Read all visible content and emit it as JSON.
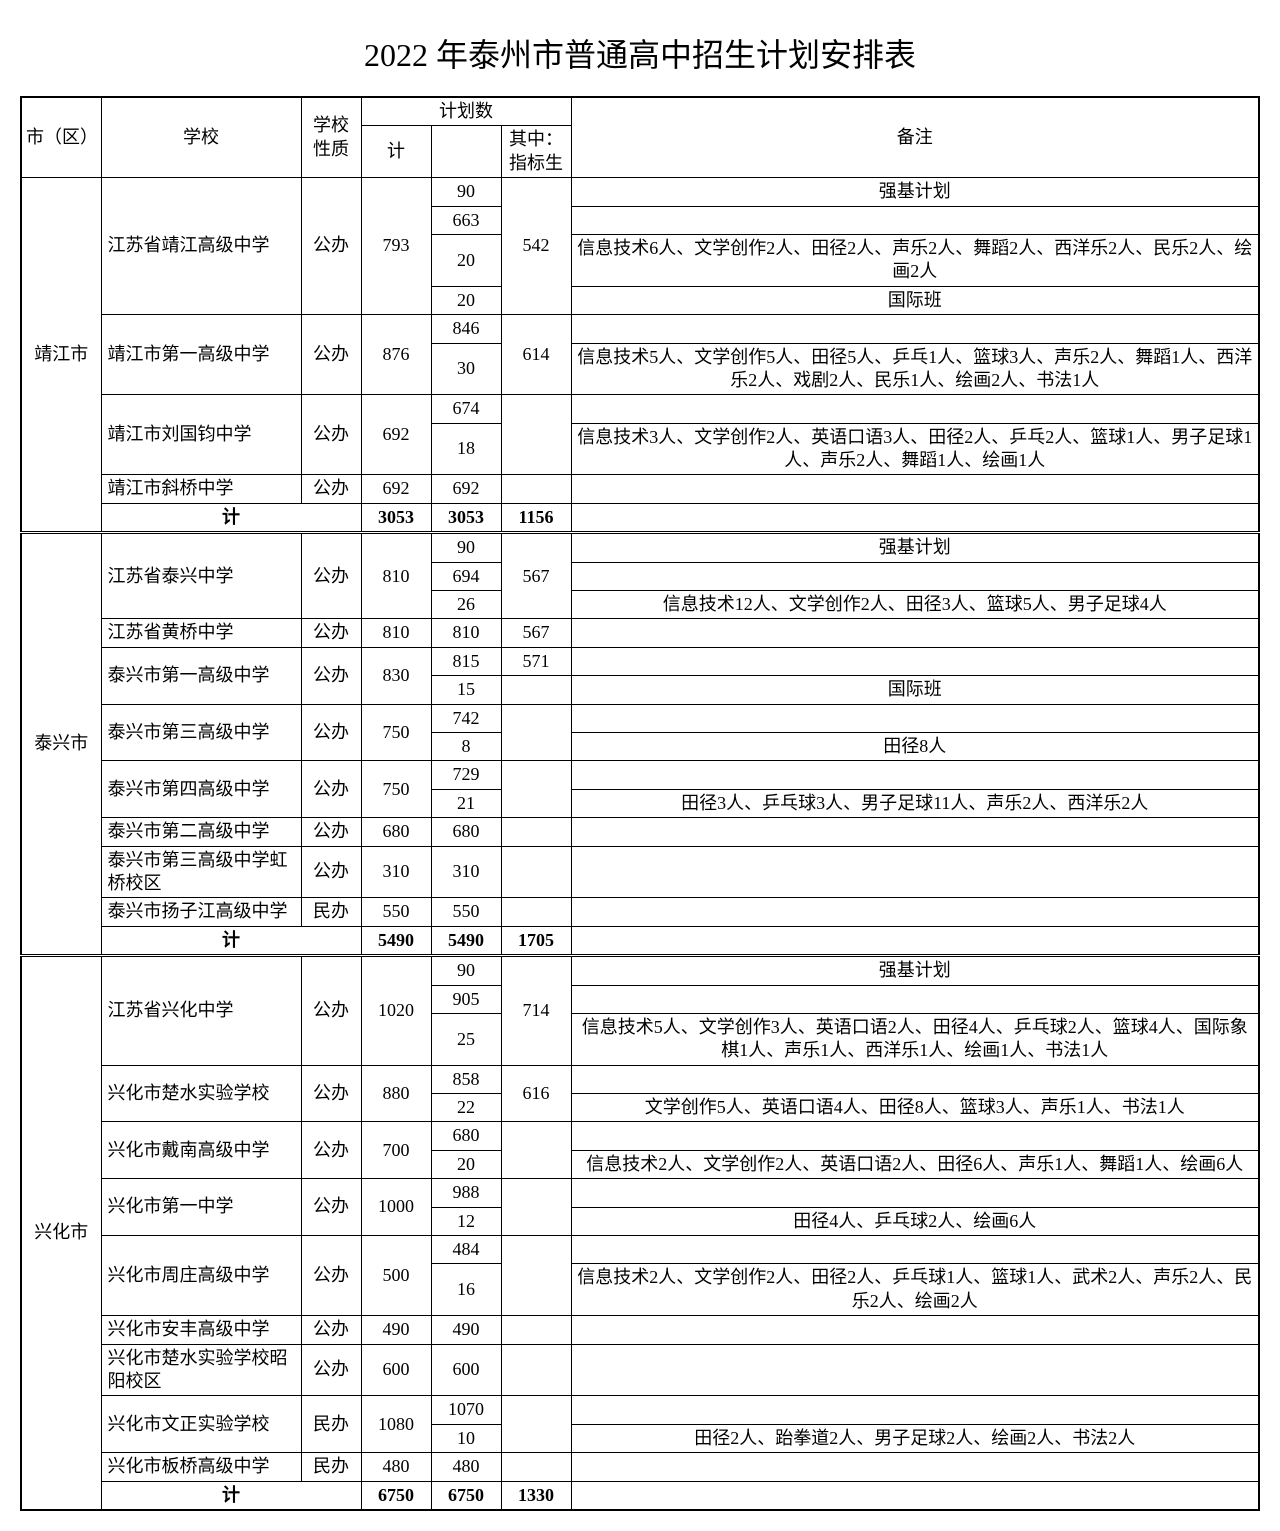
{
  "title": "2022 年泰州市普通高中招生计划安排表",
  "headers": {
    "region": "市（区）",
    "school": "学校",
    "type": "学校性质",
    "plan": "计划数",
    "total": "计",
    "sub": "",
    "zbs": "其中：指标生",
    "remark": "备注"
  },
  "labels": {
    "subtotal": "计",
    "public": "公办",
    "private": "民办"
  },
  "regions": [
    {
      "name": "靖江市",
      "schools": [
        {
          "name": "江苏省靖江高级中学",
          "type": "公办",
          "total": "793",
          "zbs": "542",
          "rows": [
            {
              "sub": "90",
              "remark": "强基计划"
            },
            {
              "sub": "663",
              "remark": ""
            },
            {
              "sub": "20",
              "remark": "信息技术6人、文学创作2人、田径2人、声乐2人、舞蹈2人、西洋乐2人、民乐2人、绘画2人"
            },
            {
              "sub": "20",
              "remark": "国际班"
            }
          ]
        },
        {
          "name": "靖江市第一高级中学",
          "type": "公办",
          "total": "876",
          "zbs": "614",
          "rows": [
            {
              "sub": "846",
              "remark": ""
            },
            {
              "sub": "30",
              "remark": "信息技术5人、文学创作5人、田径5人、乒乓1人、篮球3人、声乐2人、舞蹈1人、西洋乐2人、戏剧2人、民乐1人、绘画2人、书法1人"
            }
          ]
        },
        {
          "name": "靖江市刘国钧中学",
          "type": "公办",
          "total": "692",
          "zbs": "",
          "rows": [
            {
              "sub": "674",
              "remark": ""
            },
            {
              "sub": "18",
              "remark": "信息技术3人、文学创作2人、英语口语3人、田径2人、乒乓2人、篮球1人、男子足球1人、声乐2人、舞蹈1人、绘画1人"
            }
          ]
        },
        {
          "name": "靖江市斜桥中学",
          "type": "公办",
          "total": "692",
          "zbs": "",
          "rows": [
            {
              "sub": "692",
              "remark": ""
            }
          ]
        }
      ],
      "subtotal": {
        "total": "3053",
        "sub": "3053",
        "zbs": "1156"
      }
    },
    {
      "name": "泰兴市",
      "schools": [
        {
          "name": "江苏省泰兴中学",
          "type": "公办",
          "total": "810",
          "zbs": "567",
          "rows": [
            {
              "sub": "90",
              "remark": "强基计划"
            },
            {
              "sub": "694",
              "remark": ""
            },
            {
              "sub": "26",
              "remark": "信息技术12人、文学创作2人、田径3人、篮球5人、男子足球4人"
            }
          ]
        },
        {
          "name": "江苏省黄桥中学",
          "type": "公办",
          "total": "810",
          "zbs": "567",
          "rows": [
            {
              "sub": "810",
              "remark": ""
            }
          ]
        },
        {
          "name": "泰兴市第一高级中学",
          "type": "公办",
          "total": "830",
          "zbs": "571",
          "zbs_rowspan": 1,
          "rows": [
            {
              "sub": "815",
              "remark": ""
            },
            {
              "sub": "15",
              "remark": "国际班"
            }
          ]
        },
        {
          "name": "泰兴市第三高级中学",
          "type": "公办",
          "total": "750",
          "zbs": "",
          "rows": [
            {
              "sub": "742",
              "remark": ""
            },
            {
              "sub": "8",
              "remark": "田径8人"
            }
          ]
        },
        {
          "name": "泰兴市第四高级中学",
          "type": "公办",
          "total": "750",
          "zbs": "",
          "rows": [
            {
              "sub": "729",
              "remark": ""
            },
            {
              "sub": "21",
              "remark": "田径3人、乒乓球3人、男子足球11人、声乐2人、西洋乐2人"
            }
          ]
        },
        {
          "name": "泰兴市第二高级中学",
          "type": "公办",
          "total": "680",
          "zbs": "",
          "rows": [
            {
              "sub": "680",
              "remark": ""
            }
          ]
        },
        {
          "name": "泰兴市第三高级中学虹桥校区",
          "type": "公办",
          "total": "310",
          "zbs": "",
          "rows": [
            {
              "sub": "310",
              "remark": ""
            }
          ]
        },
        {
          "name": "泰兴市扬子江高级中学",
          "type": "民办",
          "total": "550",
          "zbs": "",
          "rows": [
            {
              "sub": "550",
              "remark": ""
            }
          ]
        }
      ],
      "subtotal": {
        "total": "5490",
        "sub": "5490",
        "zbs": "1705"
      }
    },
    {
      "name": "兴化市",
      "schools": [
        {
          "name": "江苏省兴化中学",
          "type": "公办",
          "total": "1020",
          "zbs": "714",
          "rows": [
            {
              "sub": "90",
              "remark": "强基计划"
            },
            {
              "sub": "905",
              "remark": ""
            },
            {
              "sub": "25",
              "remark": "信息技术5人、文学创作3人、英语口语2人、田径4人、乒乓球2人、篮球4人、国际象棋1人、声乐1人、西洋乐1人、绘画1人、书法1人"
            }
          ]
        },
        {
          "name": "兴化市楚水实验学校",
          "type": "公办",
          "total": "880",
          "zbs": "616",
          "rows": [
            {
              "sub": "858",
              "remark": ""
            },
            {
              "sub": "22",
              "remark": "文学创作5人、英语口语4人、田径8人、篮球3人、声乐1人、书法1人"
            }
          ]
        },
        {
          "name": "兴化市戴南高级中学",
          "type": "公办",
          "total": "700",
          "zbs": "",
          "rows": [
            {
              "sub": "680",
              "remark": ""
            },
            {
              "sub": "20",
              "remark": "信息技术2人、文学创作2人、英语口语2人、田径6人、声乐1人、舞蹈1人、绘画6人"
            }
          ]
        },
        {
          "name": "兴化市第一中学",
          "type": "公办",
          "total": "1000",
          "zbs": "",
          "rows": [
            {
              "sub": "988",
              "remark": ""
            },
            {
              "sub": "12",
              "remark": "田径4人、乒乓球2人、绘画6人"
            }
          ]
        },
        {
          "name": "兴化市周庄高级中学",
          "type": "公办",
          "total": "500",
          "zbs": "",
          "rows": [
            {
              "sub": "484",
              "remark": ""
            },
            {
              "sub": "16",
              "remark": "信息技术2人、文学创作2人、田径2人、乒乓球1人、篮球1人、武术2人、声乐2人、民乐2人、绘画2人"
            }
          ]
        },
        {
          "name": "兴化市安丰高级中学",
          "type": "公办",
          "total": "490",
          "zbs": "",
          "rows": [
            {
              "sub": "490",
              "remark": ""
            }
          ]
        },
        {
          "name": "兴化市楚水实验学校昭阳校区",
          "type": "公办",
          "total": "600",
          "zbs": "",
          "rows": [
            {
              "sub": "600",
              "remark": ""
            }
          ]
        },
        {
          "name": "兴化市文正实验学校",
          "type": "民办",
          "total": "1080",
          "zbs": "",
          "rows": [
            {
              "sub": "1070",
              "remark": ""
            },
            {
              "sub": "10",
              "remark": "田径2人、跆拳道2人、男子足球2人、绘画2人、书法2人"
            }
          ]
        },
        {
          "name": "兴化市板桥高级中学",
          "type": "民办",
          "total": "480",
          "zbs": "",
          "rows": [
            {
              "sub": "480",
              "remark": ""
            }
          ]
        }
      ],
      "subtotal": {
        "total": "6750",
        "sub": "6750",
        "zbs": "1330"
      }
    }
  ]
}
